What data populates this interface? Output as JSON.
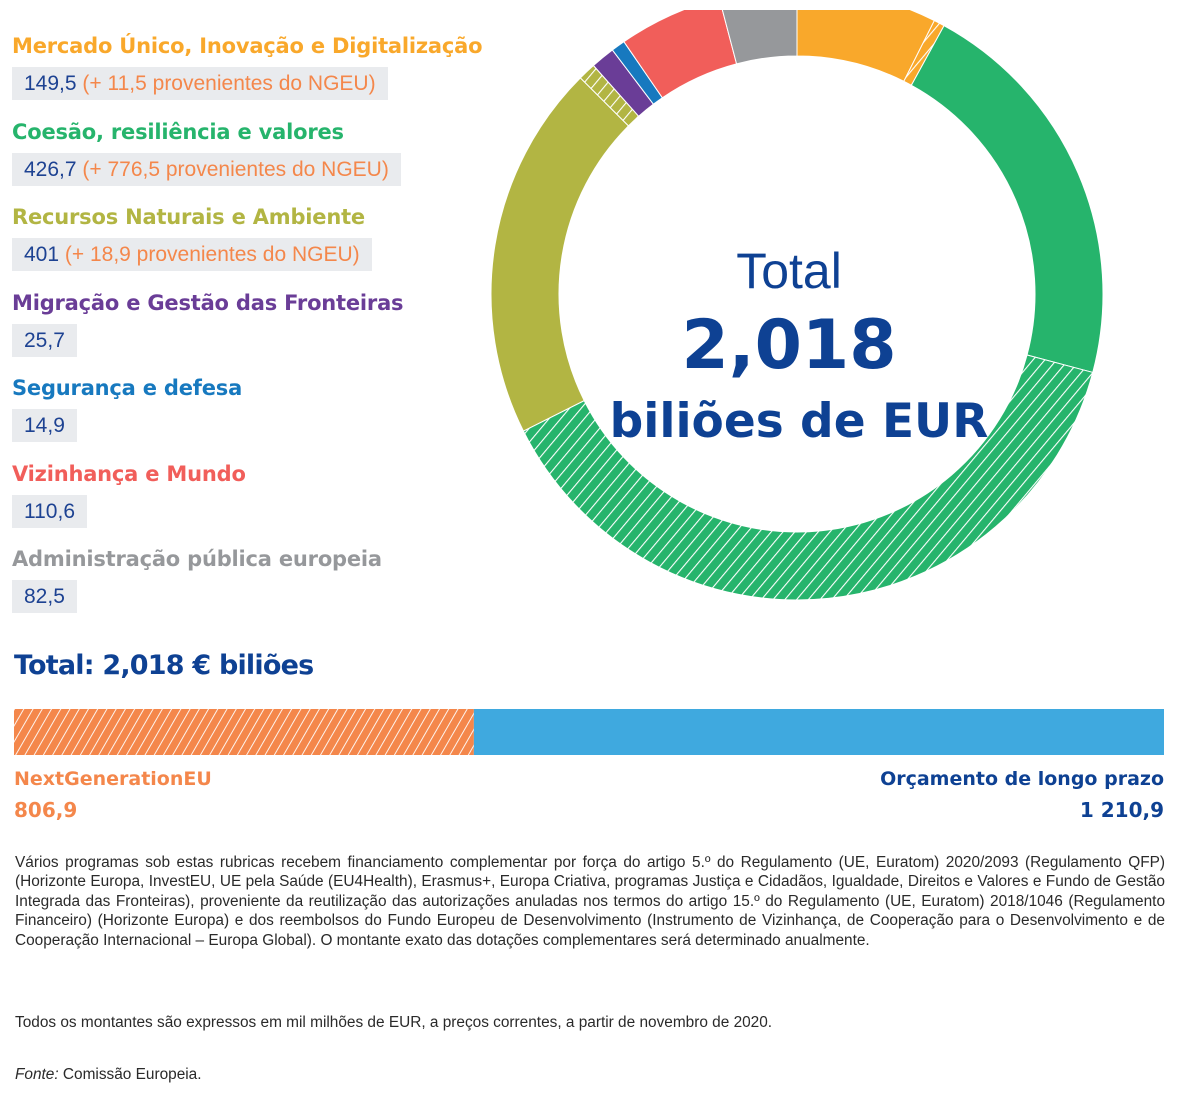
{
  "chart_data": [
    {
      "type": "pie",
      "subtype": "donut",
      "unit": "mil milhões de EUR",
      "center_text": {
        "line1": "Total",
        "line2": "2,018",
        "line3": "biliões de EUR"
      },
      "slices": [
        {
          "name": "Mercado Único, Inovação e Digitalização",
          "value": 149.5,
          "ngeu": 11.5,
          "value_text": "149,5",
          "ngeu_text": "(+ 11,5 provenientes do NGEU)",
          "color": "#f9a82b"
        },
        {
          "name": "Coesão, resiliência e valores",
          "value": 426.7,
          "ngeu": 776.5,
          "value_text": "426,7",
          "ngeu_text": "(+ 776,5 provenientes do NGEU)",
          "color": "#26b46c"
        },
        {
          "name": "Recursos Naturais e Ambiente",
          "value": 401,
          "ngeu": 18.9,
          "value_text": "401",
          "ngeu_text": "(+ 18,9 provenientes do NGEU)",
          "color": "#b2b543"
        },
        {
          "name": "Migração e Gestão das Fronteiras",
          "value": 25.7,
          "ngeu": 0,
          "value_text": "25,7",
          "ngeu_text": "",
          "color": "#6a3d97"
        },
        {
          "name": "Segurança e defesa",
          "value": 14.9,
          "ngeu": 0,
          "value_text": "14,9",
          "ngeu_text": "",
          "color": "#1779bf"
        },
        {
          "name": "Vizinhança e Mundo",
          "value": 110.6,
          "ngeu": 0,
          "value_text": "110,6",
          "ngeu_text": "",
          "color": "#f15e5a"
        },
        {
          "name": "Administração pública europeia",
          "value": 82.5,
          "ngeu": 0,
          "value_text": "82,5",
          "ngeu_text": "",
          "color": "#96989b"
        }
      ],
      "colors": {
        "center_text": "#0e4193",
        "hatch": "#ffffff"
      }
    },
    {
      "type": "bar",
      "subtype": "stacked-horizontal",
      "title": "Total: 2,018 € biliões",
      "segments": [
        {
          "name": "NextGenerationEU",
          "value": 806.9,
          "value_text": "806,9",
          "color": "#f4874b",
          "hatched": true
        },
        {
          "name": "Orçamento de longo prazo",
          "value": 1210.9,
          "value_text": "1 210,9",
          "color": "#3fa9df",
          "hatched": false
        }
      ]
    }
  ],
  "notes": {
    "footnote": "Vários programas sob estas rubricas recebem financiamento complementar por força do artigo 5.º do Regulamento (UE, Euratom) 2020/2093 (Regulamento QFP) (Horizonte Europa, InvestEU, UE pela Saúde (EU4Health), Erasmus+, Europa Criativa, programas Justiça e Cidadãos, Igualdade, Direitos e Valores e Fundo de Gestão Integrada das Fronteiras), proveniente da reutilização das autorizações anuladas nos termos do artigo 15.º do Regulamento (UE, Euratom) 2018/1046 (Regulamento Financeiro) (Horizonte Europa) e dos reembolsos do Fundo Europeu de Desenvolvimento (Instrumento de Vizinhança, de Cooperação para o Desenvolvimento e de Cooperação Internacional – Europa Global). O montante exato das dotações complementares será determinado anualmente.",
    "units": "Todos os montantes são expressos em mil milhões de EUR, a preços correntes, a partir de novembro de 2020.",
    "source_label": "Fonte:",
    "source_value": "Comissão Europeia."
  }
}
